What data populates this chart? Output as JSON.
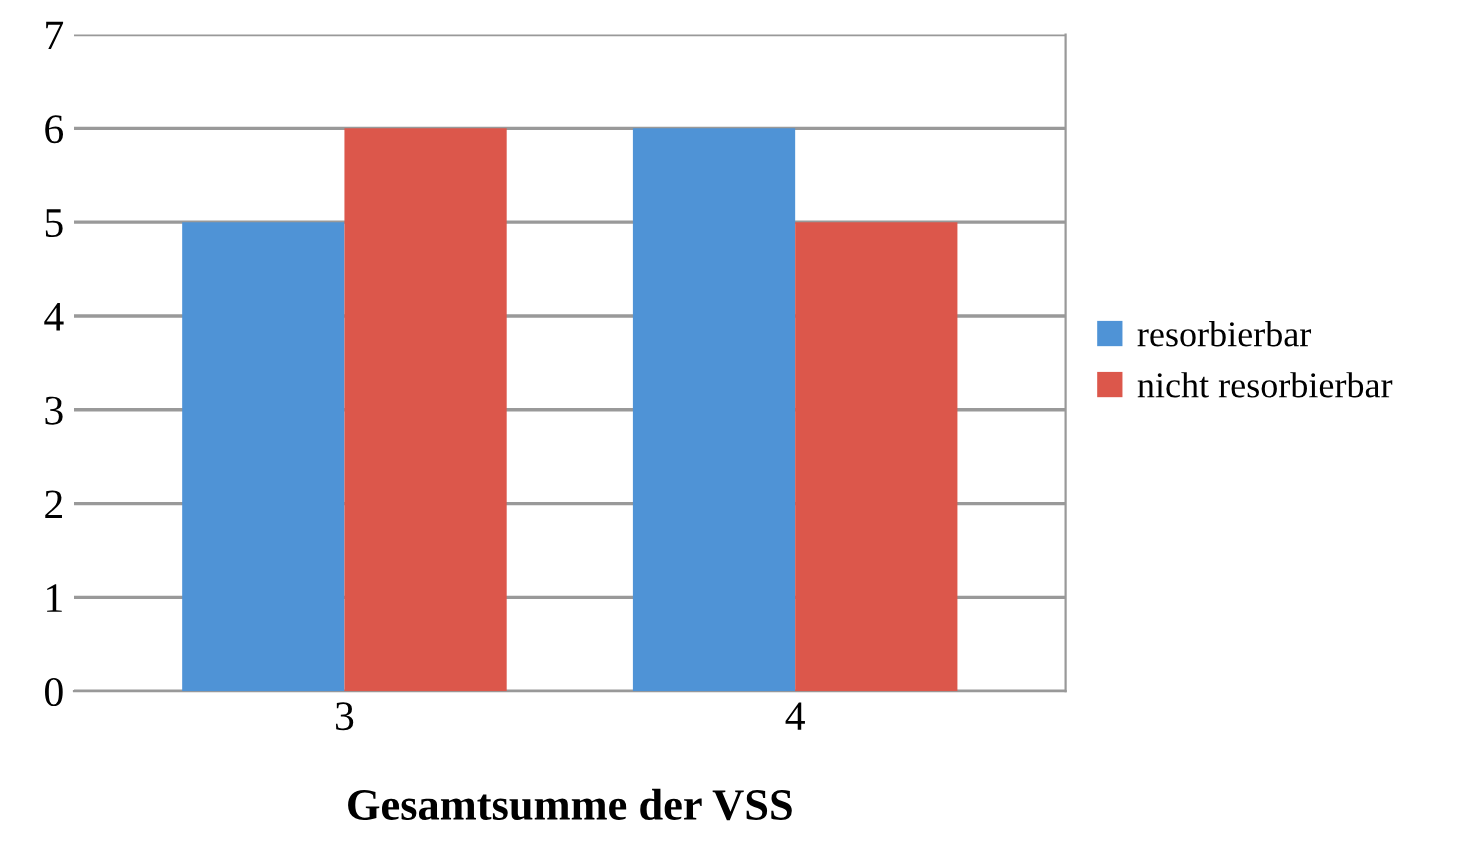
{
  "chart_data": {
    "type": "bar",
    "xlabel": "Gesamtsumme der VSS",
    "categories": [
      "3",
      "4"
    ],
    "series": [
      {
        "name": "resorbierbar",
        "color": "#4f93d6",
        "values": [
          5,
          6
        ]
      },
      {
        "name": "nicht resorbierbar",
        "color": "#dc574b",
        "values": [
          6,
          5
        ]
      }
    ],
    "ylim": [
      0,
      7
    ],
    "yticks": [
      0,
      1,
      2,
      3,
      4,
      5,
      6,
      7
    ],
    "grid": "y",
    "legend": "right"
  }
}
